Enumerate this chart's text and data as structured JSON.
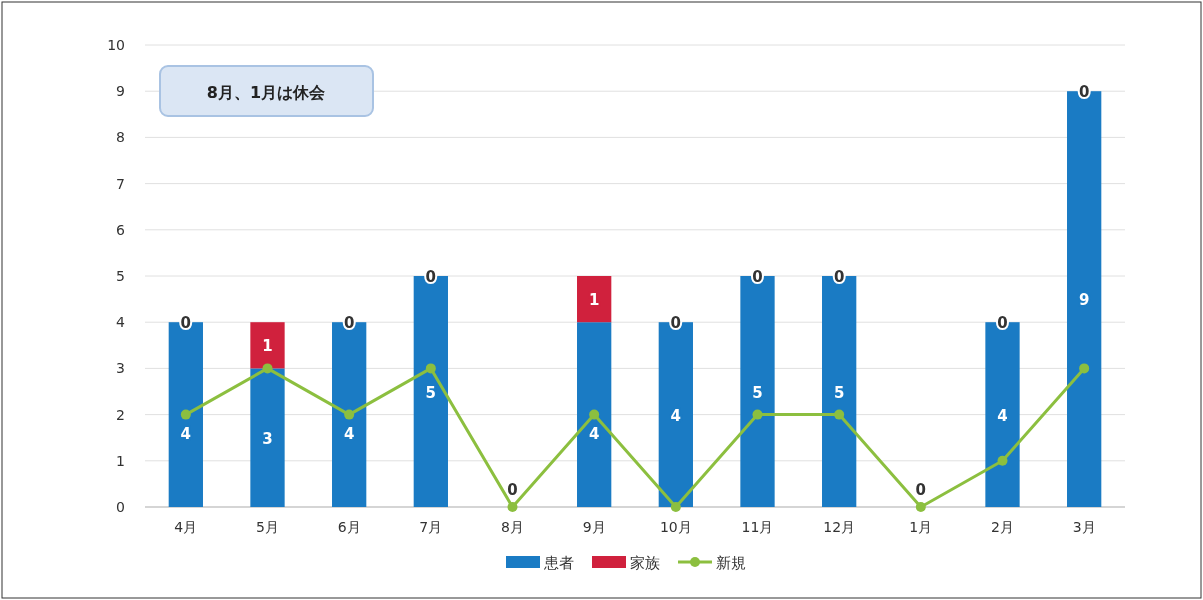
{
  "chart_data": {
    "type": "bar",
    "stacked": true,
    "categories": [
      "4月",
      "5月",
      "6月",
      "7月",
      "8月",
      "9月",
      "10月",
      "11月",
      "12月",
      "1月",
      "2月",
      "3月"
    ],
    "series": [
      {
        "name": "患者",
        "color": "#1a7bc4",
        "values": [
          4,
          3,
          4,
          5,
          0,
          4,
          4,
          5,
          5,
          0,
          4,
          9
        ],
        "value_labels": [
          "4",
          "3",
          "4",
          "5",
          null,
          "4",
          "4",
          "5",
          "5",
          null,
          "4",
          "9"
        ]
      },
      {
        "name": "家族",
        "color": "#d0213d",
        "values": [
          0,
          1,
          0,
          0,
          0,
          1,
          0,
          0,
          0,
          0,
          0,
          0
        ],
        "value_labels": [
          "0",
          "1",
          "0",
          "0",
          "0",
          "1",
          "0",
          "0",
          "0",
          "0",
          "0",
          "0"
        ]
      },
      {
        "name": "新規",
        "type": "line",
        "color": "#8cbf3f",
        "values": [
          2,
          3,
          2,
          3,
          0,
          2,
          0,
          2,
          2,
          0,
          1,
          3
        ]
      }
    ],
    "ylim": [
      0,
      10
    ],
    "yticks": [
      0,
      1,
      2,
      3,
      4,
      5,
      6,
      7,
      8,
      9,
      10
    ],
    "grid": "y",
    "legend": "bottom",
    "marker": "circle",
    "annotations": [
      "8月、1月は休会"
    ]
  }
}
